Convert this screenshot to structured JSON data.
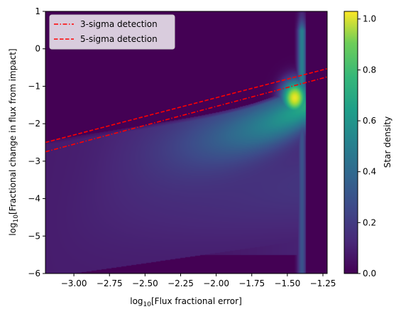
{
  "chart_data": {
    "type": "heatmap",
    "xlabel_main": "log",
    "xlabel_sub": "10",
    "xlabel_rest": "[Flux fractional error]",
    "ylabel_main": "log",
    "ylabel_sub": "10",
    "ylabel_rest": "[Fractional change in flux from impact]",
    "xlim": [
      -3.2,
      -1.22
    ],
    "ylim": [
      -6,
      1
    ],
    "xticks": [
      -3.0,
      -2.75,
      -2.5,
      -2.25,
      -2.0,
      -1.75,
      -1.5,
      -1.25
    ],
    "xtick_labels": [
      "−3.00",
      "−2.75",
      "−2.50",
      "−2.25",
      "−2.00",
      "−1.75",
      "−1.50",
      "−1.25"
    ],
    "yticks": [
      1,
      0,
      -1,
      -2,
      -3,
      -4,
      -5,
      -6
    ],
    "ytick_labels": [
      "1",
      "0",
      "−1",
      "−2",
      "−3",
      "−4",
      "−5",
      "−6"
    ],
    "colorbar": {
      "label": "Star density",
      "range": [
        0,
        1.03
      ],
      "ticks": [
        0.0,
        0.2,
        0.4,
        0.6,
        0.8,
        1.0
      ],
      "tick_labels": [
        "0.0",
        "0.2",
        "0.4",
        "0.6",
        "0.8",
        "1.0"
      ],
      "colormap": "viridis"
    },
    "series": [
      {
        "name": "3-sigma detection",
        "style": "dash-dot",
        "color": "#ff0000",
        "x": [
          -3.2,
          -1.22
        ],
        "y": [
          -2.75,
          -0.75
        ]
      },
      {
        "name": "5-sigma detection",
        "style": "dashed",
        "color": "#ff0000",
        "x": [
          -3.2,
          -1.22
        ],
        "y": [
          -2.5,
          -0.53
        ]
      }
    ],
    "legend_position": "top-left",
    "density_features": {
      "peak": {
        "x": -1.45,
        "y": -1.3
      },
      "right_edge_x": -1.37,
      "spike_top_y": 0.5
    }
  }
}
